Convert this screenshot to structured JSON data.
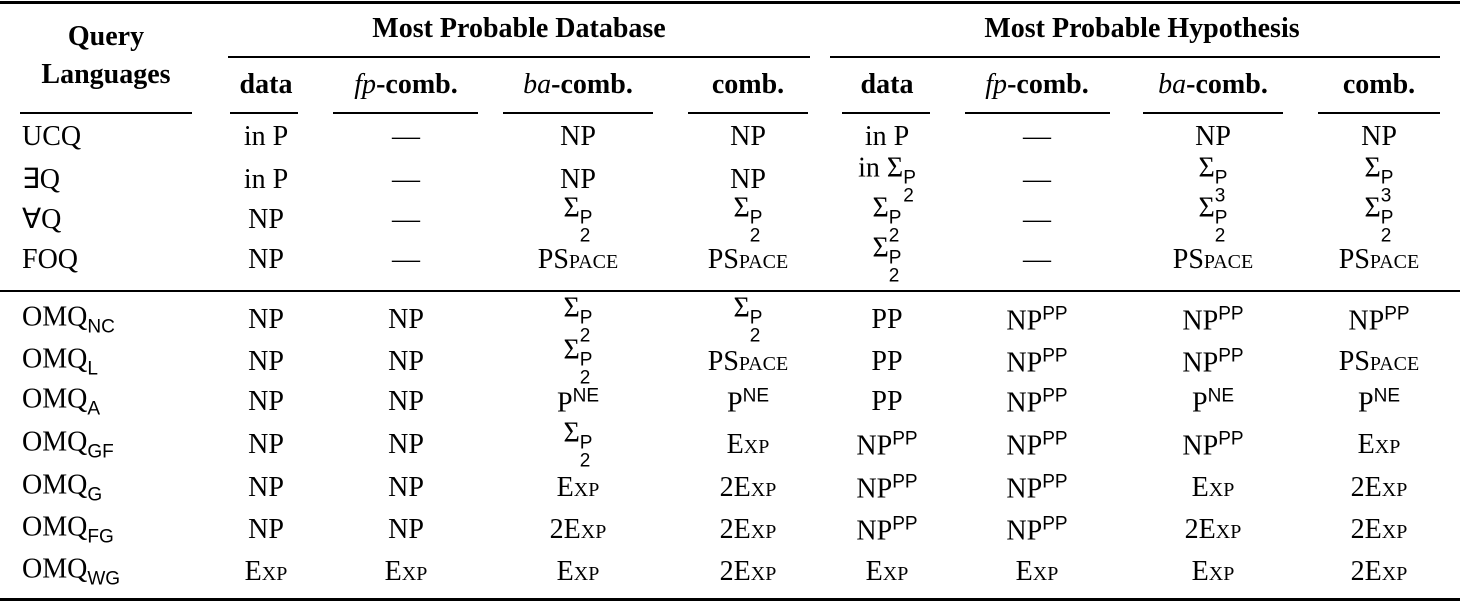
{
  "table": {
    "header": {
      "corner": "Query Languages",
      "groups": [
        "Most Probable Database",
        "Most Probable Hypothesis"
      ],
      "columns": [
        "data",
        {
          "math": "fp",
          "text": "-comb."
        },
        {
          "math": "ba",
          "text": "-comb."
        },
        "comb.",
        "data",
        {
          "math": "fp",
          "text": "-comb."
        },
        {
          "math": "ba",
          "text": "-comb."
        },
        "comb."
      ]
    },
    "sections": [
      [
        {
          "label": "UCQ",
          "cells": [
            "in P",
            "—",
            "NP",
            "NP",
            "in P",
            "—",
            "NP",
            "NP"
          ]
        },
        {
          "label": "∃Q",
          "cells": [
            "in P",
            "—",
            "NP",
            "NP",
            {
              "text": "in Σ",
              "sup": "P",
              "sub": "2"
            },
            "—",
            {
              "text": "Σ",
              "sup": "P",
              "sub": "3"
            },
            {
              "text": "Σ",
              "sup": "P",
              "sub": "3"
            }
          ]
        },
        {
          "label": "∀Q",
          "cells": [
            "NP",
            "—",
            {
              "text": "Σ",
              "sup": "P",
              "sub": "2"
            },
            {
              "text": "Σ",
              "sup": "P",
              "sub": "2"
            },
            {
              "text": "Σ",
              "sup": "P",
              "sub": "2"
            },
            "—",
            {
              "text": "Σ",
              "sup": "P",
              "sub": "2"
            },
            {
              "text": "Σ",
              "sup": "P",
              "sub": "2"
            }
          ]
        },
        {
          "label": "FOQ",
          "cells": [
            "NP",
            "—",
            {
              "text": "PSpace",
              "small_caps": true
            },
            {
              "text": "PSpace",
              "small_caps": true
            },
            {
              "text": "Σ",
              "sup": "P",
              "sub": "2"
            },
            "—",
            {
              "text": "PSpace",
              "small_caps": true
            },
            {
              "text": "PSpace",
              "small_caps": true
            }
          ]
        }
      ],
      [
        {
          "label": {
            "text": "OMQ",
            "sub": "NC"
          },
          "cells": [
            "NP",
            "NP",
            {
              "text": "Σ",
              "sup": "P",
              "sub": "2"
            },
            {
              "text": "Σ",
              "sup": "P",
              "sub": "2"
            },
            "PP",
            {
              "text": "NP",
              "sup": "PP"
            },
            {
              "text": "NP",
              "sup": "PP"
            },
            {
              "text": "NP",
              "sup": "PP"
            }
          ]
        },
        {
          "label": {
            "text": "OMQ",
            "sub": "L"
          },
          "cells": [
            "NP",
            "NP",
            {
              "text": "Σ",
              "sup": "P",
              "sub": "2"
            },
            {
              "text": "PSpace",
              "small_caps": true
            },
            "PP",
            {
              "text": "NP",
              "sup": "PP"
            },
            {
              "text": "NP",
              "sup": "PP"
            },
            {
              "text": "PSpace",
              "small_caps": true
            }
          ]
        },
        {
          "label": {
            "text": "OMQ",
            "sub": "A"
          },
          "cells": [
            "NP",
            "NP",
            {
              "text": "P",
              "sup": "NE"
            },
            {
              "text": "P",
              "sup": "NE"
            },
            "PP",
            {
              "text": "NP",
              "sup": "PP"
            },
            {
              "text": "P",
              "sup": "NE"
            },
            {
              "text": "P",
              "sup": "NE"
            }
          ]
        },
        {
          "label": {
            "text": "OMQ",
            "sub": "GF"
          },
          "cells": [
            "NP",
            "NP",
            {
              "text": "Σ",
              "sup": "P",
              "sub": "2"
            },
            {
              "text": "Exp",
              "small_caps": true
            },
            {
              "text": "NP",
              "sup": "PP"
            },
            {
              "text": "NP",
              "sup": "PP"
            },
            {
              "text": "NP",
              "sup": "PP"
            },
            {
              "text": "Exp",
              "small_caps": true
            }
          ]
        },
        {
          "label": {
            "text": "OMQ",
            "sub": "G"
          },
          "cells": [
            "NP",
            "NP",
            {
              "text": "Exp",
              "small_caps": true
            },
            {
              "text": "2Exp",
              "small_caps": true
            },
            {
              "text": "NP",
              "sup": "PP"
            },
            {
              "text": "NP",
              "sup": "PP"
            },
            {
              "text": "Exp",
              "small_caps": true
            },
            {
              "text": "2Exp",
              "small_caps": true
            }
          ]
        },
        {
          "label": {
            "text": "OMQ",
            "sub": "FG"
          },
          "cells": [
            "NP",
            "NP",
            {
              "text": "2Exp",
              "small_caps": true
            },
            {
              "text": "2Exp",
              "small_caps": true
            },
            {
              "text": "NP",
              "sup": "PP"
            },
            {
              "text": "NP",
              "sup": "PP"
            },
            {
              "text": "2Exp",
              "small_caps": true
            },
            {
              "text": "2Exp",
              "small_caps": true
            }
          ]
        },
        {
          "label": {
            "text": "OMQ",
            "sub": "WG"
          },
          "cells": [
            {
              "text": "Exp",
              "small_caps": true
            },
            {
              "text": "Exp",
              "small_caps": true
            },
            {
              "text": "Exp",
              "small_caps": true
            },
            {
              "text": "2Exp",
              "small_caps": true
            },
            {
              "text": "Exp",
              "small_caps": true
            },
            {
              "text": "Exp",
              "small_caps": true
            },
            {
              "text": "Exp",
              "small_caps": true
            },
            {
              "text": "2Exp",
              "small_caps": true
            }
          ]
        }
      ]
    ]
  }
}
